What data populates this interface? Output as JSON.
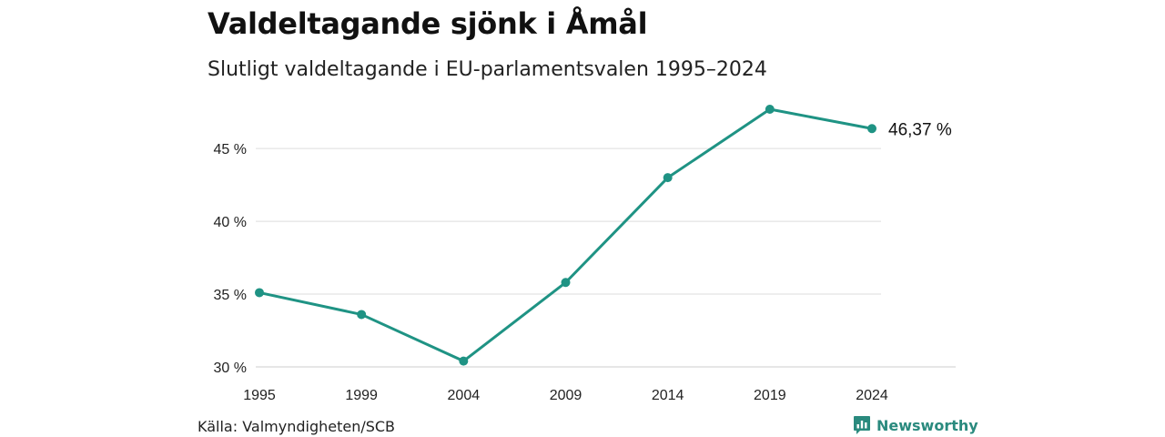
{
  "chart_data": {
    "type": "line",
    "title": "Valdeltagande sjönk i Åmål",
    "subtitle": "Slutligt valdeltagande i EU-parlamentsvalen 1995–2024",
    "xlabel": "",
    "ylabel": "",
    "categories": [
      "1995",
      "1999",
      "2004",
      "2009",
      "2014",
      "2019",
      "2024"
    ],
    "series": [
      {
        "values": [
          35.1,
          33.6,
          30.4,
          35.8,
          43.0,
          47.7,
          46.37
        ],
        "color": "#1f9384"
      }
    ],
    "yticks": [
      30,
      35,
      40,
      45
    ],
    "ytick_labels": [
      "30 %",
      "35 %",
      "40 %",
      "45 %"
    ],
    "ylim": [
      30,
      47.7
    ],
    "grid": true,
    "end_label": "46,37 %",
    "source": "Källa: Valmyndigheten/SCB"
  },
  "branding": {
    "name": "Newsworthy",
    "color": "#2a8a7e",
    "icon": "bar-chart-speech-bubble-icon"
  }
}
